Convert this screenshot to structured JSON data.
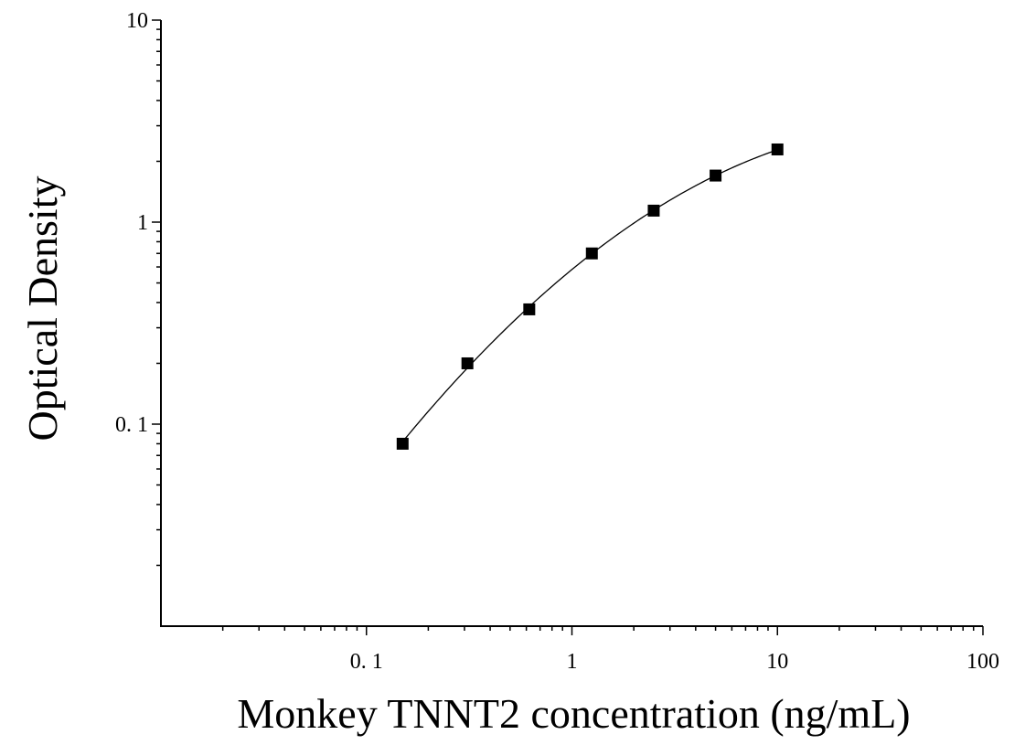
{
  "chart_data": {
    "type": "scatter",
    "title": "",
    "xlabel": "Monkey TNNT2 concentration (ng/mL)",
    "ylabel": "Optical Density",
    "xscale": "log",
    "yscale": "log",
    "xlim": [
      0.01,
      100
    ],
    "ylim": [
      0.01,
      10
    ],
    "x_ticks": [
      {
        "value": 0.1,
        "label": "0. 1"
      },
      {
        "value": 1,
        "label": "1"
      },
      {
        "value": 10,
        "label": "10"
      },
      {
        "value": 100,
        "label": "100"
      }
    ],
    "y_ticks": [
      {
        "value": 0.1,
        "label": "0. 1"
      },
      {
        "value": 1,
        "label": "1"
      },
      {
        "value": 10,
        "label": "10"
      }
    ],
    "grid": false,
    "legend": "none",
    "marker": "square",
    "fit_line": true,
    "series": [
      {
        "x": [
          0.15,
          0.31,
          0.62,
          1.25,
          2.5,
          5,
          10
        ],
        "y": [
          0.08,
          0.2,
          0.37,
          0.7,
          1.14,
          1.7,
          2.29
        ]
      }
    ],
    "colors": {
      "marker": "#000000",
      "line": "#000000",
      "axis": "#000000"
    }
  }
}
